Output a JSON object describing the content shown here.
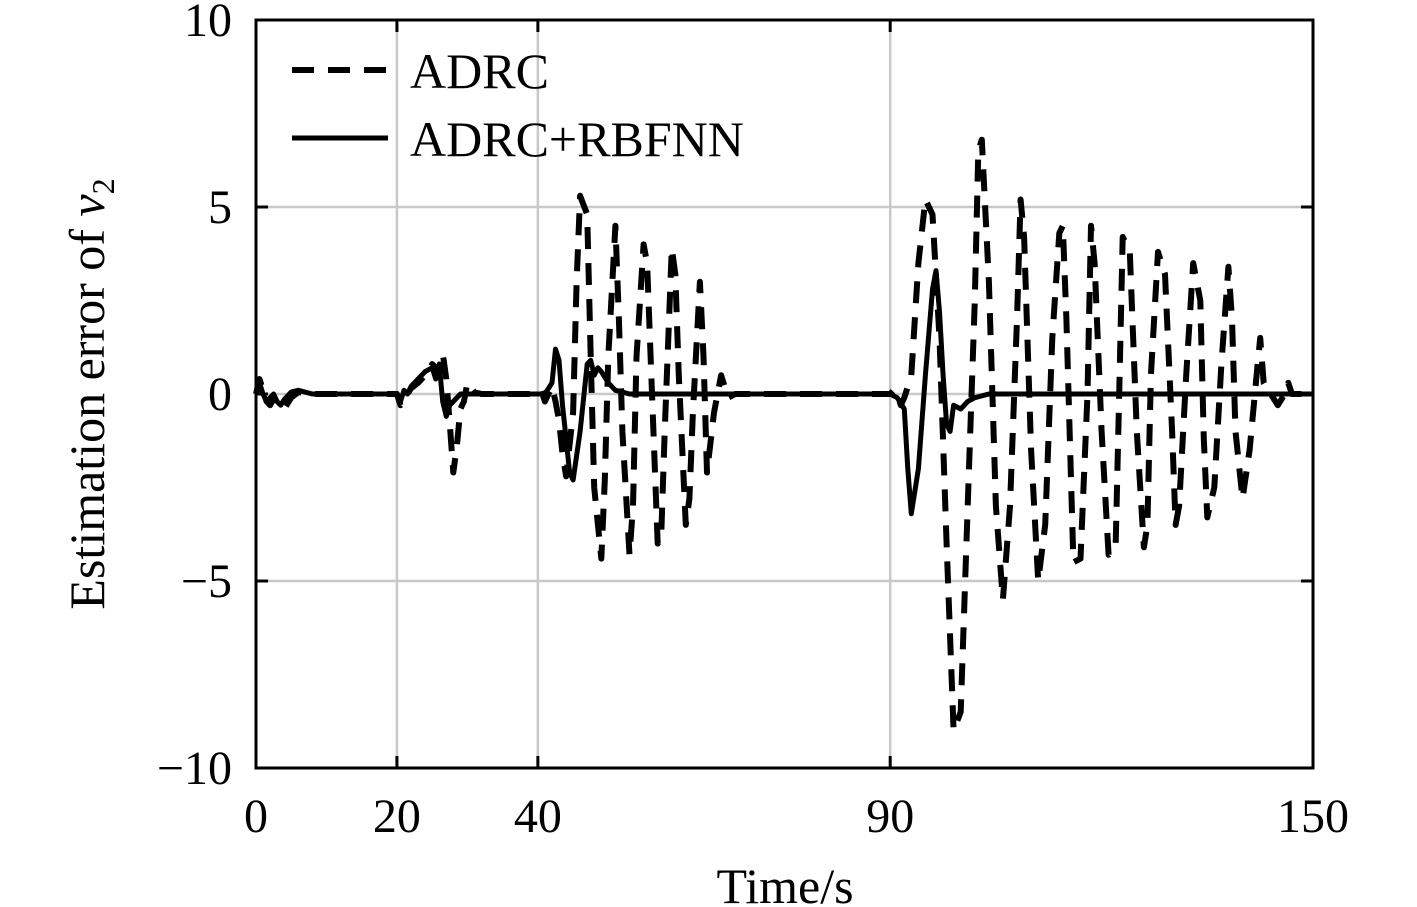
{
  "chart_data": {
    "type": "line",
    "title": "",
    "xlabel": "Time/s",
    "ylabel": {
      "text": "Estimation error of ",
      "var": "v",
      "sub": "2"
    },
    "xlim": [
      0,
      150
    ],
    "ylim": [
      -10,
      10
    ],
    "x_ticks": [
      0,
      20,
      40,
      90,
      150
    ],
    "x_tick_labels": [
      "0",
      "20",
      "40",
      "90",
      "150"
    ],
    "y_ticks": [
      -10,
      -5,
      0,
      5,
      10
    ],
    "y_tick_labels": [
      "−10",
      "−5",
      "0",
      "5",
      "10"
    ],
    "grid": true,
    "legend_position": "top-left",
    "series": [
      {
        "name": "ADRC",
        "style": "dashed",
        "color": "#000000",
        "x": [
          0.0,
          0.5,
          1.0,
          1.5,
          2.0,
          2.5,
          3.0,
          4.0,
          5.0,
          6.0,
          8.0,
          10.0,
          20.0,
          20.5,
          21.0,
          21.5,
          22.0,
          23.0,
          24.0,
          25.0,
          26.0,
          26.5,
          27.0,
          27.5,
          28.0,
          28.5,
          29.0,
          29.5,
          30.0,
          31.0,
          32.0,
          33.0,
          40.0,
          40.5,
          41.0,
          41.5,
          42.0,
          42.5,
          43.0,
          43.5,
          44.0,
          45.0,
          45.5,
          46.0,
          47.0,
          47.5,
          48.0,
          49.0,
          49.5,
          50.0,
          51.0,
          51.5,
          52.0,
          53.0,
          53.5,
          54.0,
          55.0,
          55.5,
          56.0,
          57.0,
          57.5,
          58.0,
          59.0,
          59.5,
          60.0,
          61.0,
          61.5,
          62.0,
          63.0,
          63.5,
          64.0,
          65.0,
          66.0,
          67.0,
          68.0,
          90.0,
          90.5,
          91.0,
          91.5,
          92.0,
          93.0,
          94.0,
          95.0,
          96.0,
          97.0,
          98.0,
          99.0,
          100.0,
          101.0,
          102.0,
          102.5,
          103.0,
          104.0,
          105.0,
          106.0,
          107.0,
          108.0,
          108.5,
          109.0,
          110.0,
          111.0,
          112.0,
          113.0,
          114.0,
          114.5,
          115.0,
          116.0,
          117.0,
          118.0,
          118.5,
          119.0,
          120.0,
          121.0,
          122.0,
          122.5,
          123.0,
          124.0,
          125.0,
          126.0,
          126.5,
          127.0,
          128.0,
          129.0,
          130.0,
          130.5,
          131.0,
          132.0,
          133.0,
          134.0,
          134.5,
          135.0,
          136.0,
          137.0,
          138.0,
          138.5,
          139.0,
          140.0,
          141.0,
          142.0,
          142.5,
          143.0,
          144.0,
          145.0,
          146.0,
          146.5,
          147.0,
          148.0,
          149.0,
          150.0
        ],
        "y": [
          0.0,
          0.4,
          0.1,
          -0.2,
          -0.3,
          -0.1,
          -0.3,
          -0.4,
          -0.1,
          0.05,
          0.0,
          0.0,
          0.0,
          -0.3,
          -0.2,
          0.0,
          0.15,
          0.3,
          0.5,
          0.8,
          0.6,
          1.1,
          0.4,
          -0.8,
          -2.1,
          -1.4,
          -0.4,
          -0.2,
          0.3,
          0.05,
          0.0,
          0.0,
          0.0,
          0.1,
          -0.2,
          0.0,
          0.2,
          -0.2,
          -0.7,
          -1.6,
          -2.2,
          -0.5,
          3.0,
          5.3,
          4.8,
          1.0,
          -2.5,
          -4.4,
          -2.3,
          1.0,
          4.5,
          2.0,
          -1.0,
          -4.3,
          -3.0,
          1.0,
          4.0,
          3.5,
          1.0,
          -4.0,
          -3.8,
          -1.0,
          3.9,
          3.2,
          0.5,
          -3.5,
          -2.8,
          -0.5,
          3.0,
          1.0,
          -2.1,
          -0.5,
          0.5,
          -0.1,
          0.0,
          0.0,
          0.1,
          0.0,
          -0.3,
          -0.1,
          0.5,
          3.5,
          5.2,
          4.8,
          1.5,
          -4.0,
          -9.0,
          -8.5,
          -3.0,
          2.5,
          6.5,
          6.8,
          3.0,
          -3.0,
          -5.5,
          -3.0,
          2.0,
          5.2,
          4.2,
          -1.5,
          -5.0,
          -3.5,
          1.5,
          4.3,
          4.5,
          2.0,
          -4.5,
          -4.4,
          0.0,
          4.5,
          3.5,
          -1.0,
          -4.3,
          -4.0,
          0.0,
          4.2,
          3.8,
          -1.0,
          -4.1,
          -3.5,
          0.5,
          3.8,
          3.2,
          -1.0,
          -3.5,
          -3.0,
          0.5,
          3.5,
          2.5,
          -1.2,
          -3.3,
          -2.5,
          0.8,
          3.4,
          2.0,
          -1.0,
          -2.8,
          -1.5,
          0.5,
          1.5,
          0.3,
          0.0,
          -0.3,
          0.0,
          0.3,
          0.0,
          0.0,
          0.0,
          0.0
        ]
      },
      {
        "name": "ADRC+RBFNN",
        "style": "solid",
        "color": "#000000",
        "x": [
          0.0,
          0.5,
          1.0,
          1.5,
          2.0,
          2.5,
          3.0,
          3.5,
          4.0,
          5.0,
          6.0,
          8.0,
          10.0,
          20.0,
          20.5,
          21.0,
          21.5,
          22.0,
          23.0,
          24.0,
          25.0,
          25.5,
          26.0,
          26.5,
          27.0,
          27.5,
          28.0,
          29.0,
          30.0,
          32.0,
          40.0,
          41.0,
          42.0,
          42.5,
          43.0,
          43.5,
          44.0,
          44.5,
          45.0,
          46.0,
          47.0,
          47.5,
          48.0,
          48.5,
          49.0,
          50.0,
          51.0,
          52.0,
          53.0,
          55.0,
          58.0,
          60.0,
          90.0,
          91.0,
          92.0,
          92.5,
          93.0,
          94.0,
          95.0,
          96.0,
          96.5,
          97.0,
          97.5,
          98.0,
          98.5,
          99.0,
          100.0,
          101.0,
          102.0,
          104.0,
          106.0,
          110.0,
          150.0
        ],
        "y": [
          0.0,
          0.3,
          0.0,
          -0.2,
          -0.1,
          0.0,
          -0.2,
          -0.3,
          -0.15,
          0.05,
          0.1,
          0.0,
          0.0,
          0.0,
          -0.2,
          0.1,
          0.0,
          0.2,
          0.4,
          0.6,
          0.7,
          0.4,
          0.8,
          -0.2,
          -0.6,
          -0.3,
          -0.2,
          0.0,
          0.0,
          0.0,
          0.0,
          0.0,
          0.3,
          1.2,
          0.9,
          -0.3,
          -1.2,
          -2.1,
          -2.3,
          -1.0,
          0.8,
          0.9,
          0.5,
          0.7,
          0.6,
          0.3,
          0.1,
          0.05,
          0.0,
          0.0,
          0.0,
          0.0,
          0.0,
          -0.1,
          -0.4,
          -2.0,
          -3.2,
          -2.0,
          0.5,
          2.8,
          3.3,
          2.2,
          0.5,
          -0.8,
          -1.0,
          -0.3,
          -0.4,
          -0.2,
          -0.1,
          0.0,
          0.0,
          0.0,
          0.0
        ]
      }
    ]
  }
}
